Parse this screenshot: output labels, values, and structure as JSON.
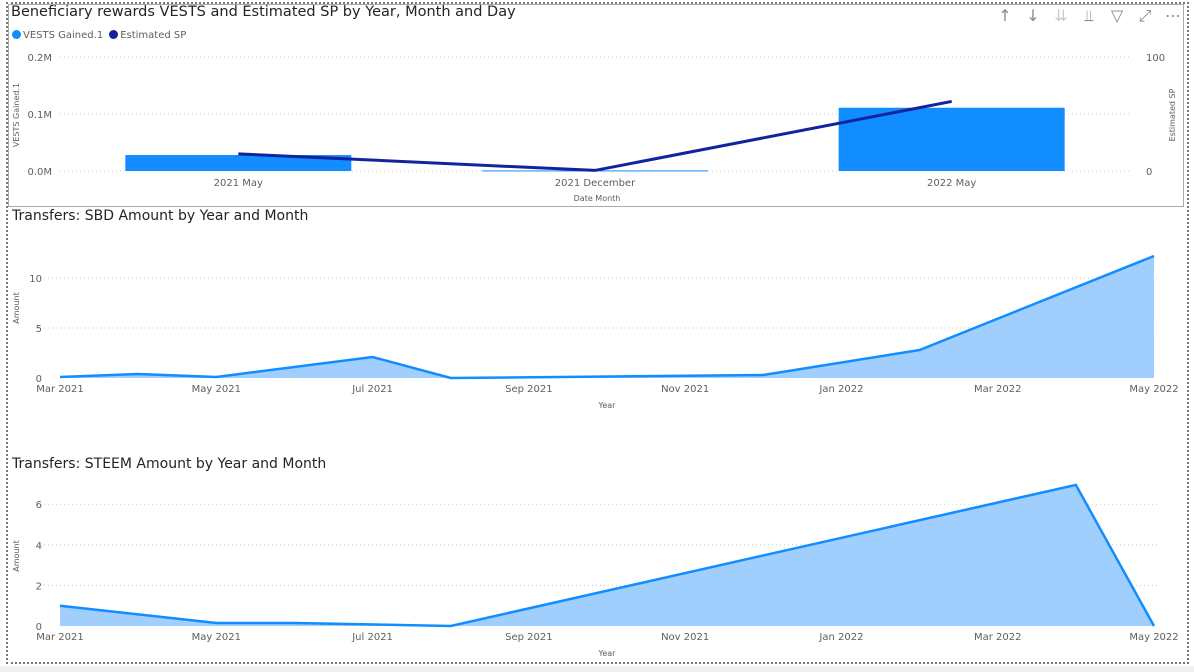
{
  "toolbar": {
    "icons": [
      "arrow-up-icon",
      "arrow-down-icon",
      "double-arrow-down-icon",
      "expand-hierarchy-icon",
      "filter-icon",
      "focus-mode-icon",
      "more-options-icon"
    ],
    "glyphs": [
      "↑",
      "↓",
      "⇊",
      "⫫",
      "▽",
      "⤢",
      "⋯"
    ]
  },
  "colors": {
    "bar": "#118dff",
    "line": "#12239e",
    "area_line": "#118dff",
    "area_fill": "#a0cffd"
  },
  "chart_data": [
    {
      "type": "bar+line",
      "title": "Beneficiary rewards VESTS and Estimated SP by Year, Month and Day",
      "legend": [
        "VESTS Gained.1",
        "Estimated SP"
      ],
      "legend_position": "top-left",
      "categories": [
        "2021 May",
        "2021 December",
        "2022 May"
      ],
      "xlabel": "Date Month",
      "ylabel": "VESTS Gained.1",
      "y2label": "Estimated SP",
      "ylim": [
        0,
        200000
      ],
      "yticks": [
        "0.0M",
        "0.1M",
        "0.2M"
      ],
      "y2lim": [
        0,
        100
      ],
      "y2ticks": [
        "0",
        "100"
      ],
      "series": [
        {
          "name": "VESTS Gained.1",
          "kind": "bar",
          "values": [
            28000,
            1000,
            111000
          ]
        },
        {
          "name": "Estimated SP",
          "kind": "line",
          "values": [
            15,
            0.5,
            61
          ]
        }
      ],
      "grid": true
    },
    {
      "type": "area",
      "title": "Transfers: SBD Amount by Year and Month",
      "xlabel": "Year",
      "ylabel": "Amount",
      "ylim": [
        0,
        12.5
      ],
      "yticks": [
        "0",
        "5",
        "10"
      ],
      "xticks": [
        "Mar 2021",
        "May 2021",
        "Jul 2021",
        "Sep 2021",
        "Nov 2021",
        "Jan 2022",
        "Mar 2022",
        "May 2022"
      ],
      "x": [
        "2021-03",
        "2021-04",
        "2021-05",
        "2021-07",
        "2021-08",
        "2021-12",
        "2022-02",
        "2022-05"
      ],
      "values": [
        0.1,
        0.4,
        0.1,
        2.1,
        0,
        0.3,
        2.8,
        12.2
      ],
      "grid": true
    },
    {
      "type": "area",
      "title": "Transfers: STEEM Amount by Year and Month",
      "xlabel": "Year",
      "ylabel": "Amount",
      "ylim": [
        0,
        7
      ],
      "yticks": [
        "0",
        "2",
        "4",
        "6"
      ],
      "xticks": [
        "Mar 2021",
        "May 2021",
        "Jul 2021",
        "Sep 2021",
        "Nov 2021",
        "Jan 2022",
        "Mar 2022",
        "May 2022"
      ],
      "x": [
        "2021-03",
        "2021-05",
        "2021-06",
        "2021-08",
        "2022-04",
        "2022-05"
      ],
      "values": [
        1.0,
        0.15,
        0.15,
        0,
        6.95,
        0
      ],
      "grid": true
    }
  ]
}
